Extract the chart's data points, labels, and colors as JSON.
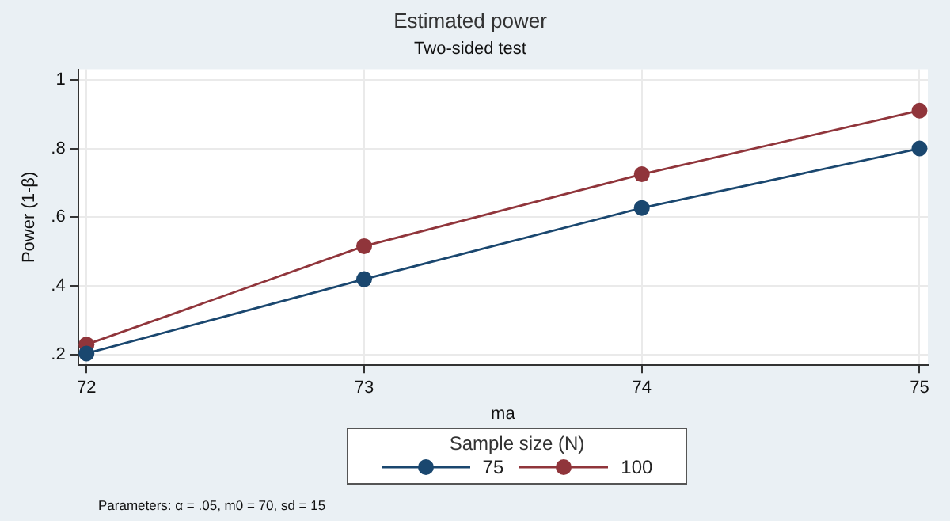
{
  "chart_data": {
    "type": "line",
    "title": "Estimated power",
    "subtitle": "Two-sided test",
    "xlabel": "ma",
    "ylabel": "Power (1-β)",
    "legend_title": "Sample size (N)",
    "x": [
      72,
      73,
      74,
      75
    ],
    "series": [
      {
        "name": "75",
        "color": "#1a476f",
        "values": [
          0.204,
          0.42,
          0.627,
          0.8
        ]
      },
      {
        "name": "100",
        "color": "#90353b",
        "values": [
          0.23,
          0.516,
          0.725,
          0.91
        ]
      }
    ],
    "xlim": [
      71.97,
      75.03
    ],
    "xticks": [
      72,
      73,
      74,
      75
    ],
    "ylim": [
      0.17,
      1.03
    ],
    "yticks": [
      {
        "value": 0.2,
        "label": ".2"
      },
      {
        "value": 0.4,
        "label": ".4"
      },
      {
        "value": 0.6,
        "label": ".6"
      },
      {
        "value": 0.8,
        "label": ".8"
      },
      {
        "value": 1,
        "label": "1"
      }
    ],
    "grid": true,
    "legend": "bottom",
    "marker": "circle",
    "line_style": "solid",
    "annotations": [
      "Parameters: α = .05, m0 = 70, sd = 15"
    ]
  }
}
